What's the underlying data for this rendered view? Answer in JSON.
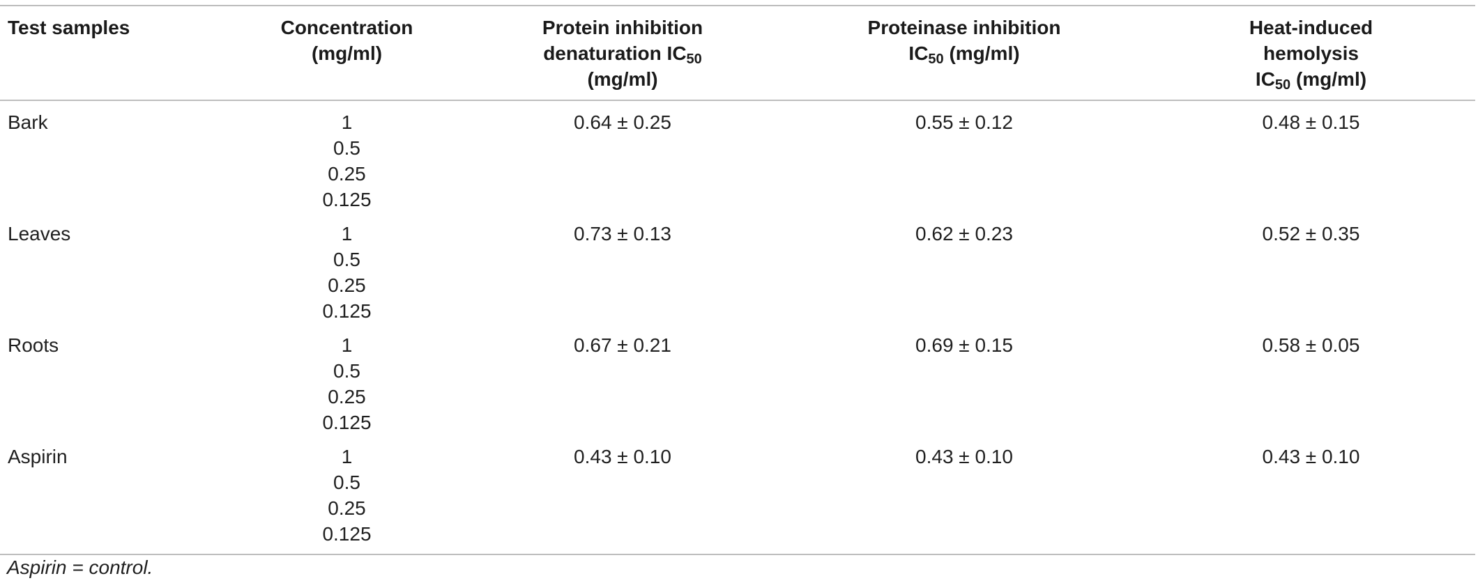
{
  "table": {
    "headers": {
      "test_samples": "Test samples",
      "concentration": [
        "Concentration",
        "(mg/ml)"
      ],
      "protein_inhibition": {
        "line1": "Protein inhibition",
        "line2_pre": "denaturation IC",
        "line2_sub": "50",
        "line3": "(mg/ml)"
      },
      "proteinase_inhibition": {
        "line1": "Proteinase inhibition",
        "line2_pre": "IC",
        "line2_sub": "50",
        "line2_post": " (mg/ml)"
      },
      "heat_hemolysis": {
        "line1": "Heat-induced",
        "line2": "hemolysis",
        "line3_pre": "IC",
        "line3_sub": "50",
        "line3_post": " (mg/ml)"
      }
    },
    "rows": [
      {
        "sample": "Bark",
        "concentrations": [
          "1",
          "0.5",
          "0.25",
          "0.125"
        ],
        "protein": "0.64 ± 0.25",
        "proteinase": "0.55 ± 0.12",
        "hemolysis": "0.48 ± 0.15"
      },
      {
        "sample": "Leaves",
        "concentrations": [
          "1",
          "0.5",
          "0.25",
          "0.125"
        ],
        "protein": "0.73 ± 0.13",
        "proteinase": "0.62 ± 0.23",
        "hemolysis": "0.52 ± 0.35"
      },
      {
        "sample": "Roots",
        "concentrations": [
          "1",
          "0.5",
          "0.25",
          "0.125"
        ],
        "protein": "0.67 ± 0.21",
        "proteinase": "0.69 ± 0.15",
        "hemolysis": "0.58 ± 0.05"
      },
      {
        "sample": "Aspirin",
        "concentrations": [
          "1",
          "0.5",
          "0.25",
          "0.125"
        ],
        "protein": "0.43 ± 0.10",
        "proteinase": "0.43 ± 0.10",
        "hemolysis": "0.43 ± 0.10"
      }
    ]
  },
  "footnote": "Aspirin = control."
}
